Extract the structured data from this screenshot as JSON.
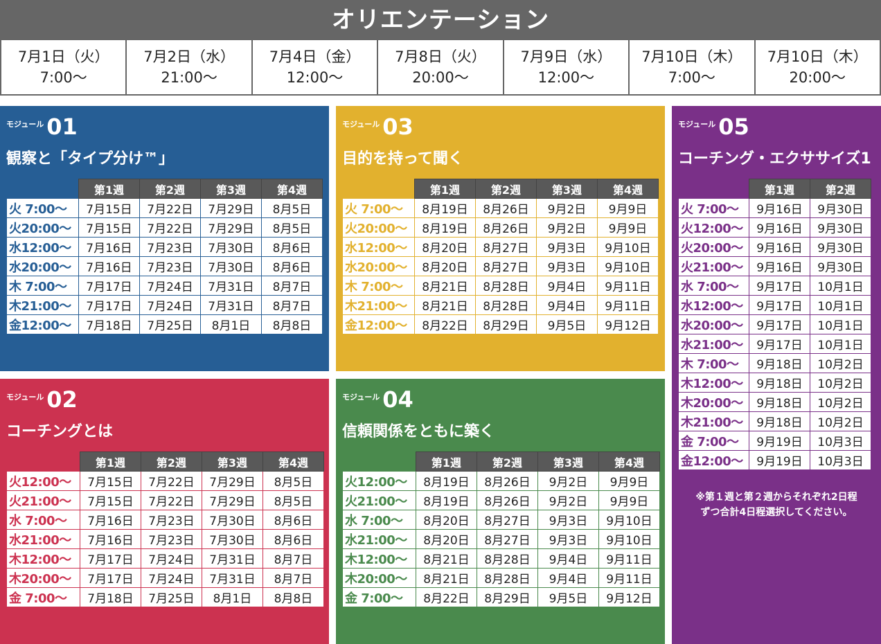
{
  "orientation": {
    "title": "オリエンテーション",
    "sessions": [
      {
        "date": "7月1日（火）",
        "time": "7:00〜"
      },
      {
        "date": "7月2日（水）",
        "time": "21:00〜"
      },
      {
        "date": "7月4日（金）",
        "time": "12:00〜"
      },
      {
        "date": "7月8日（火）",
        "time": "20:00〜"
      },
      {
        "date": "7月9日（水）",
        "time": "12:00〜"
      },
      {
        "date": "7月10日（木）",
        "time": "7:00〜"
      },
      {
        "date": "7月10日（木）",
        "time": "20:00〜"
      }
    ]
  },
  "modules": [
    {
      "key": "m01",
      "label": "モジュール",
      "number": "01",
      "title": "観察と「タイプ分け™」",
      "color": "#265e95",
      "weeks": [
        "第1週",
        "第2週",
        "第3週",
        "第4週"
      ],
      "rows": [
        {
          "slot": "火 7:00〜",
          "dates": [
            "7月15日",
            "7月22日",
            "7月29日",
            "8月5日"
          ]
        },
        {
          "slot": "火20:00〜",
          "dates": [
            "7月15日",
            "7月22日",
            "7月29日",
            "8月5日"
          ]
        },
        {
          "slot": "水12:00〜",
          "dates": [
            "7月16日",
            "7月23日",
            "7月30日",
            "8月6日"
          ]
        },
        {
          "slot": "水20:00〜",
          "dates": [
            "7月16日",
            "7月23日",
            "7月30日",
            "8月6日"
          ]
        },
        {
          "slot": "木 7:00〜",
          "dates": [
            "7月17日",
            "7月24日",
            "7月31日",
            "8月7日"
          ]
        },
        {
          "slot": "木21:00〜",
          "dates": [
            "7月17日",
            "7月24日",
            "7月31日",
            "8月7日"
          ]
        },
        {
          "slot": "金12:00〜",
          "dates": [
            "7月18日",
            "7月25日",
            "8月1日",
            "8月8日"
          ]
        }
      ]
    },
    {
      "key": "m02",
      "label": "モジュール",
      "number": "02",
      "title": "コーチングとは",
      "color": "#cc3250",
      "weeks": [
        "第1週",
        "第2週",
        "第3週",
        "第4週"
      ],
      "rows": [
        {
          "slot": "火12:00〜",
          "dates": [
            "7月15日",
            "7月22日",
            "7月29日",
            "8月5日"
          ]
        },
        {
          "slot": "火21:00〜",
          "dates": [
            "7月15日",
            "7月22日",
            "7月29日",
            "8月5日"
          ]
        },
        {
          "slot": "水 7:00〜",
          "dates": [
            "7月16日",
            "7月23日",
            "7月30日",
            "8月6日"
          ]
        },
        {
          "slot": "水21:00〜",
          "dates": [
            "7月16日",
            "7月23日",
            "7月30日",
            "8月6日"
          ]
        },
        {
          "slot": "木12:00〜",
          "dates": [
            "7月17日",
            "7月24日",
            "7月31日",
            "8月7日"
          ]
        },
        {
          "slot": "木20:00〜",
          "dates": [
            "7月17日",
            "7月24日",
            "7月31日",
            "8月7日"
          ]
        },
        {
          "slot": "金 7:00〜",
          "dates": [
            "7月18日",
            "7月25日",
            "8月1日",
            "8月8日"
          ]
        }
      ]
    },
    {
      "key": "m03",
      "label": "モジュール",
      "number": "03",
      "title": "目的を持って聞く",
      "color": "#e2b12e",
      "weeks": [
        "第1週",
        "第2週",
        "第3週",
        "第4週"
      ],
      "rows": [
        {
          "slot": "火 7:00〜",
          "dates": [
            "8月19日",
            "8月26日",
            "9月2日",
            "9月9日"
          ]
        },
        {
          "slot": "火20:00〜",
          "dates": [
            "8月19日",
            "8月26日",
            "9月2日",
            "9月9日"
          ]
        },
        {
          "slot": "水12:00〜",
          "dates": [
            "8月20日",
            "8月27日",
            "9月3日",
            "9月10日"
          ]
        },
        {
          "slot": "水20:00〜",
          "dates": [
            "8月20日",
            "8月27日",
            "9月3日",
            "9月10日"
          ]
        },
        {
          "slot": "木 7:00〜",
          "dates": [
            "8月21日",
            "8月28日",
            "9月4日",
            "9月11日"
          ]
        },
        {
          "slot": "木21:00〜",
          "dates": [
            "8月21日",
            "8月28日",
            "9月4日",
            "9月11日"
          ]
        },
        {
          "slot": "金12:00〜",
          "dates": [
            "8月22日",
            "8月29日",
            "9月5日",
            "9月12日"
          ]
        }
      ]
    },
    {
      "key": "m04",
      "label": "モジュール",
      "number": "04",
      "title": "信頼関係をともに築く",
      "color": "#4a8a4d",
      "weeks": [
        "第1週",
        "第2週",
        "第3週",
        "第4週"
      ],
      "rows": [
        {
          "slot": "火12:00〜",
          "dates": [
            "8月19日",
            "8月26日",
            "9月2日",
            "9月9日"
          ]
        },
        {
          "slot": "火21:00〜",
          "dates": [
            "8月19日",
            "8月26日",
            "9月2日",
            "9月9日"
          ]
        },
        {
          "slot": "水 7:00〜",
          "dates": [
            "8月20日",
            "8月27日",
            "9月3日",
            "9月10日"
          ]
        },
        {
          "slot": "水21:00〜",
          "dates": [
            "8月20日",
            "8月27日",
            "9月3日",
            "9月10日"
          ]
        },
        {
          "slot": "木12:00〜",
          "dates": [
            "8月21日",
            "8月28日",
            "9月4日",
            "9月11日"
          ]
        },
        {
          "slot": "木20:00〜",
          "dates": [
            "8月21日",
            "8月28日",
            "9月4日",
            "9月11日"
          ]
        },
        {
          "slot": "金 7:00〜",
          "dates": [
            "8月22日",
            "8月29日",
            "9月5日",
            "9月12日"
          ]
        }
      ]
    },
    {
      "key": "m05",
      "label": "モジュール",
      "number": "05",
      "title": "コーチング・エクササイズ1",
      "color": "#7a3088",
      "weeks": [
        "第1週",
        "第2週"
      ],
      "rows": [
        {
          "slot": "火 7:00〜",
          "dates": [
            "9月16日",
            "9月30日"
          ]
        },
        {
          "slot": "火12:00〜",
          "dates": [
            "9月16日",
            "9月30日"
          ]
        },
        {
          "slot": "火20:00〜",
          "dates": [
            "9月16日",
            "9月30日"
          ]
        },
        {
          "slot": "火21:00〜",
          "dates": [
            "9月16日",
            "9月30日"
          ]
        },
        {
          "slot": "水 7:00〜",
          "dates": [
            "9月17日",
            "10月1日"
          ]
        },
        {
          "slot": "水12:00〜",
          "dates": [
            "9月17日",
            "10月1日"
          ]
        },
        {
          "slot": "水20:00〜",
          "dates": [
            "9月17日",
            "10月1日"
          ]
        },
        {
          "slot": "水21:00〜",
          "dates": [
            "9月17日",
            "10月1日"
          ]
        },
        {
          "slot": "木 7:00〜",
          "dates": [
            "9月18日",
            "10月2日"
          ]
        },
        {
          "slot": "木12:00〜",
          "dates": [
            "9月18日",
            "10月2日"
          ]
        },
        {
          "slot": "木20:00〜",
          "dates": [
            "9月18日",
            "10月2日"
          ]
        },
        {
          "slot": "木21:00〜",
          "dates": [
            "9月18日",
            "10月2日"
          ]
        },
        {
          "slot": "金 7:00〜",
          "dates": [
            "9月19日",
            "10月3日"
          ]
        },
        {
          "slot": "金12:00〜",
          "dates": [
            "9月19日",
            "10月3日"
          ]
        }
      ],
      "note": [
        "※第１週と第２週からそれぞれ2日程",
        "ずつ合計4日程選択してください。"
      ]
    }
  ]
}
